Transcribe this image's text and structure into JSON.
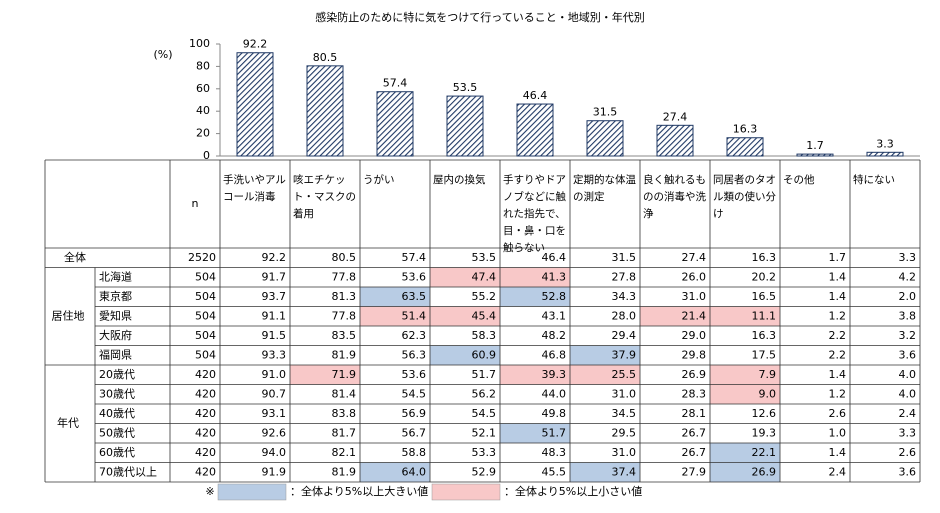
{
  "chart_data": {
    "type": "bar",
    "title": "感染防止のために特に気をつけて行っていること・地域別・年代別",
    "y_unit": "(%)",
    "categories": [
      "手洗いやアルコール消毒",
      "咳エチケット・マスクの着用",
      "うがい",
      "屋内の換気",
      "手すりやドアノブなどに触れた指先で、目・鼻・口を触らない",
      "定期的な体温の測定",
      "良く触れるものの消毒や洗浄",
      "同居者のタオル類の使い分け",
      "その他",
      "特にない"
    ],
    "values": [
      92.2,
      80.5,
      57.4,
      53.5,
      46.4,
      31.5,
      27.4,
      16.3,
      1.7,
      3.3
    ],
    "ylim": [
      0,
      100
    ],
    "yticks": [
      0,
      20,
      40,
      60,
      80,
      100
    ],
    "color": "#1f3864"
  },
  "table": {
    "n_header": "n",
    "total": {
      "label": "全体",
      "n": "2520"
    },
    "groups": [
      {
        "label": "居住地",
        "rows": [
          {
            "label": "北海道",
            "n": "504",
            "cells": [
              "91.7",
              "77.8",
              "53.6",
              "47.4",
              "41.3",
              "27.8",
              "26.0",
              "20.2",
              "1.4",
              "4.2"
            ],
            "above": [],
            "below": [
              3,
              4
            ]
          },
          {
            "label": "東京都",
            "n": "504",
            "cells": [
              "93.7",
              "81.3",
              "63.5",
              "55.2",
              "52.8",
              "34.3",
              "31.0",
              "16.5",
              "1.4",
              "2.0"
            ],
            "above": [
              2,
              4
            ],
            "below": []
          },
          {
            "label": "愛知県",
            "n": "504",
            "cells": [
              "91.1",
              "77.8",
              "51.4",
              "45.4",
              "43.1",
              "28.0",
              "21.4",
              "11.1",
              "1.2",
              "3.8"
            ],
            "above": [],
            "below": [
              2,
              3,
              6,
              7
            ]
          },
          {
            "label": "大阪府",
            "n": "504",
            "cells": [
              "91.5",
              "83.5",
              "62.3",
              "58.3",
              "48.2",
              "29.4",
              "29.0",
              "16.3",
              "2.2",
              "3.2"
            ],
            "above": [],
            "below": []
          },
          {
            "label": "福岡県",
            "n": "504",
            "cells": [
              "93.3",
              "81.9",
              "56.3",
              "60.9",
              "46.8",
              "37.9",
              "29.8",
              "17.5",
              "2.2",
              "3.6"
            ],
            "above": [
              3,
              5
            ],
            "below": []
          }
        ]
      },
      {
        "label": "年代",
        "rows": [
          {
            "label": "20歳代",
            "n": "420",
            "cells": [
              "91.0",
              "71.9",
              "53.6",
              "51.7",
              "39.3",
              "25.5",
              "26.9",
              "7.9",
              "1.4",
              "4.0"
            ],
            "above": [],
            "below": [
              1,
              4,
              5,
              7
            ]
          },
          {
            "label": "30歳代",
            "n": "420",
            "cells": [
              "90.7",
              "81.4",
              "54.5",
              "56.2",
              "44.0",
              "31.0",
              "28.3",
              "9.0",
              "1.2",
              "4.0"
            ],
            "above": [],
            "below": [
              7
            ]
          },
          {
            "label": "40歳代",
            "n": "420",
            "cells": [
              "93.1",
              "83.8",
              "56.9",
              "54.5",
              "49.8",
              "34.5",
              "28.1",
              "12.6",
              "2.6",
              "2.4"
            ],
            "above": [],
            "below": []
          },
          {
            "label": "50歳代",
            "n": "420",
            "cells": [
              "92.6",
              "81.7",
              "56.7",
              "52.1",
              "51.7",
              "29.5",
              "26.7",
              "19.3",
              "1.0",
              "3.3"
            ],
            "above": [
              4
            ],
            "below": []
          },
          {
            "label": "60歳代",
            "n": "420",
            "cells": [
              "94.0",
              "82.1",
              "58.8",
              "53.3",
              "48.3",
              "31.0",
              "26.7",
              "22.1",
              "1.4",
              "2.6"
            ],
            "above": [
              7
            ],
            "below": []
          },
          {
            "label": "70歳代以上",
            "n": "420",
            "cells": [
              "91.9",
              "81.9",
              "64.0",
              "52.9",
              "45.5",
              "37.4",
              "27.9",
              "26.9",
              "2.4",
              "3.6"
            ],
            "above": [
              2,
              5,
              7
            ],
            "below": []
          }
        ]
      }
    ],
    "note_mark": "※",
    "legend": [
      {
        "label": "：全体より5%以上大きい値",
        "color": "#b8cce4"
      },
      {
        "label": "：全体より5%以上小さい値",
        "color": "#f8c8c8"
      }
    ]
  }
}
